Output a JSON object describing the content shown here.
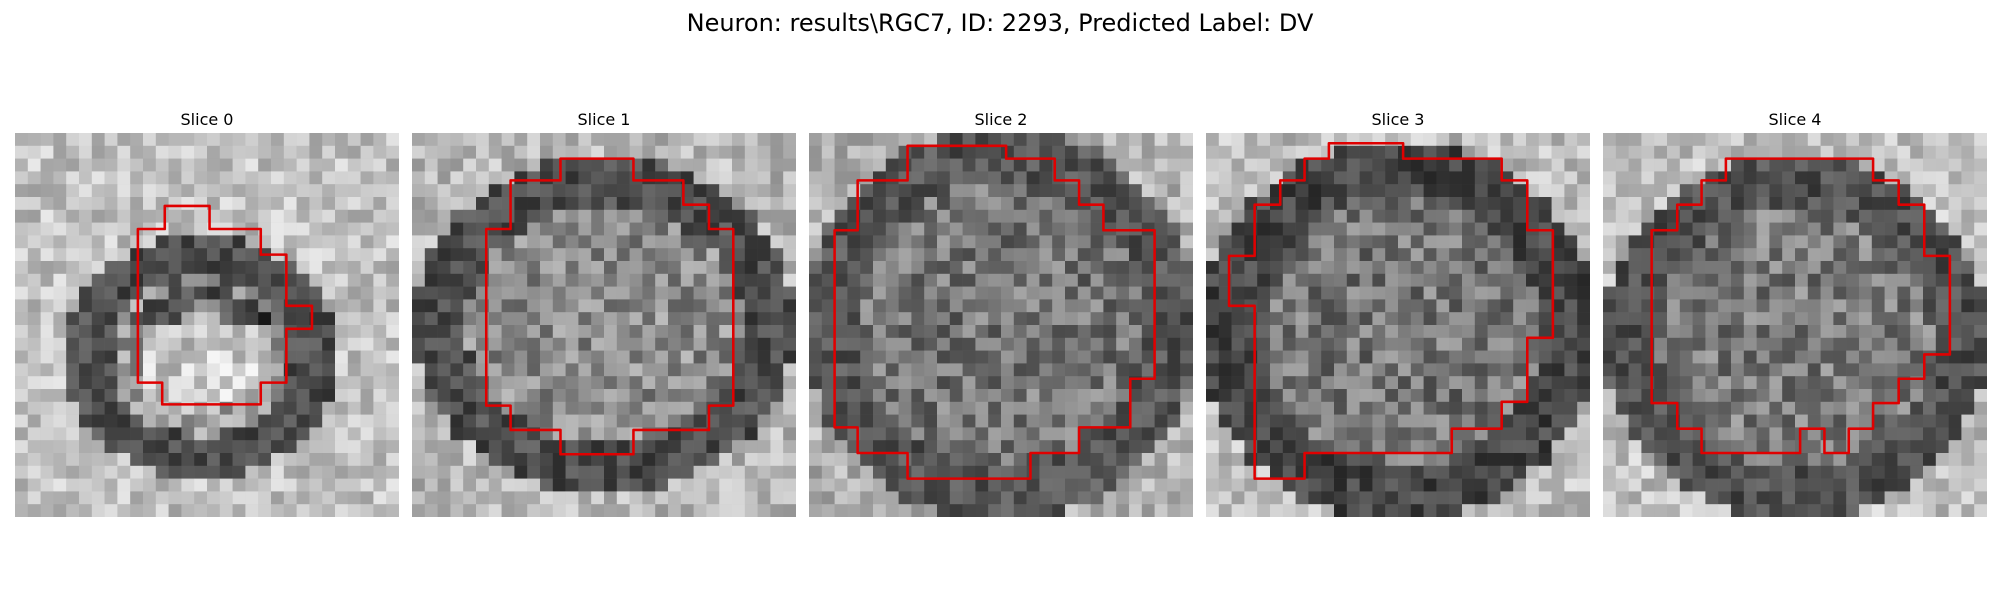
{
  "figure": {
    "title": "Neuron: results\\RGC7, ID: 2293, Predicted Label: DV"
  },
  "panels": [
    {
      "title": "Slice 0"
    },
    {
      "title": "Slice 1"
    },
    {
      "title": "Slice 2"
    },
    {
      "title": "Slice 3"
    },
    {
      "title": "Slice 4"
    }
  ],
  "colors": {
    "contour": "#e00000",
    "colormap": "gray"
  }
}
